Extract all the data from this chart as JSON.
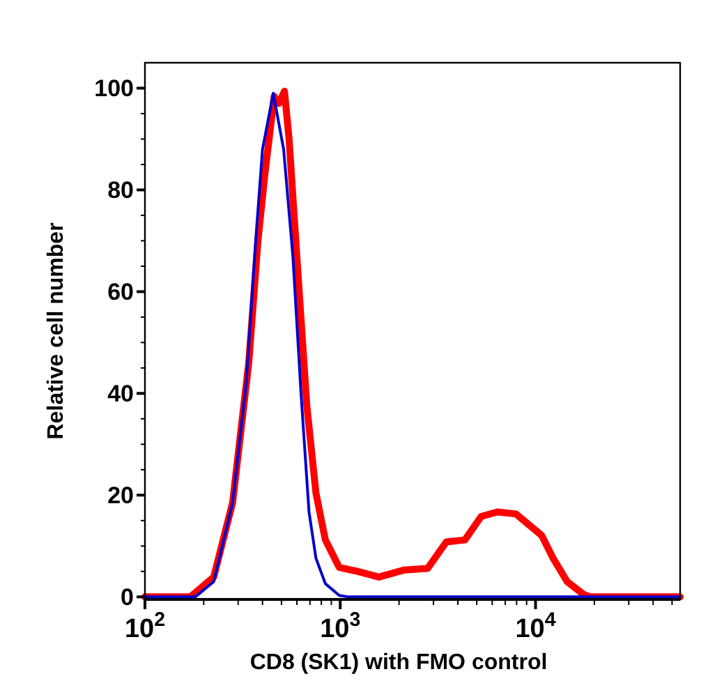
{
  "chart_data": {
    "type": "line",
    "log": "x",
    "xlabel": "CD8 (SK1) with FMO control",
    "ylabel": "Relative cell number",
    "xlim": [
      100,
      55000
    ],
    "ylim": [
      -0.5,
      105
    ],
    "xticks": [
      {
        "value": 100,
        "label": "10$^{2}$"
      },
      {
        "value": 200,
        "label": null
      },
      {
        "value": 300,
        "label": null
      },
      {
        "value": 400,
        "label": null
      },
      {
        "value": 500,
        "label": null
      },
      {
        "value": 600,
        "label": null
      },
      {
        "value": 700,
        "label": null
      },
      {
        "value": 800,
        "label": null
      },
      {
        "value": 900,
        "label": null
      },
      {
        "value": 1000,
        "label": "10$^{3}$"
      },
      {
        "value": 2000,
        "label": null
      },
      {
        "value": 3000,
        "label": null
      },
      {
        "value": 4000,
        "label": null
      },
      {
        "value": 5000,
        "label": null
      },
      {
        "value": 6000,
        "label": null
      },
      {
        "value": 7000,
        "label": null
      },
      {
        "value": 8000,
        "label": null
      },
      {
        "value": 9000,
        "label": null
      },
      {
        "value": 10000,
        "label": "10$^{4}$"
      },
      {
        "value": 20000,
        "label": null
      },
      {
        "value": 30000,
        "label": null
      },
      {
        "value": 40000,
        "label": null
      },
      {
        "value": 50000,
        "label": null
      }
    ],
    "yticks": [
      0,
      {
        "value": 5,
        "label": null
      },
      {
        "value": 10,
        "label": null
      },
      {
        "value": 15,
        "label": null
      },
      20,
      {
        "value": 25,
        "label": null
      },
      {
        "value": 30,
        "label": null
      },
      {
        "value": 35,
        "label": null
      },
      40,
      {
        "value": 45,
        "label": null
      },
      {
        "value": 50,
        "label": null
      },
      {
        "value": 55,
        "label": null
      },
      60,
      {
        "value": 65,
        "label": null
      },
      {
        "value": 70,
        "label": null
      },
      {
        "value": 75,
        "label": null
      },
      80,
      {
        "value": 85,
        "label": null
      },
      {
        "value": 90,
        "label": null
      },
      {
        "value": 95,
        "label": null
      },
      100
    ],
    "series": [
      {
        "color": "#ff0000",
        "x": [
          100,
          171,
          225,
          281,
          340,
          379,
          411,
          459,
          485,
          518,
          547,
          604,
          674,
          751,
          839,
          988,
          1231,
          1578,
          2133,
          2805,
          3491,
          4350,
          5265,
          6380,
          7943,
          9360,
          10740,
          12300,
          14520,
          17600,
          19100,
          55000
        ],
        "values": [
          0,
          0,
          3.9,
          18.5,
          46,
          70,
          83,
          98.4,
          97,
          99.4,
          90,
          65,
          37.7,
          20.4,
          11.2,
          5.8,
          5,
          3.9,
          5.3,
          5.6,
          10.8,
          11.2,
          15.8,
          16.7,
          16.3,
          14,
          12.1,
          7.6,
          3,
          0.5,
          0,
          0
        ]
      },
      {
        "color": "#0000cc",
        "x": [
          100,
          181,
          225,
          281,
          330,
          369,
          400,
          454,
          513,
          572,
          631,
          692,
          751,
          839,
          988,
          1100,
          55000
        ],
        "values": [
          0,
          0,
          3,
          18.5,
          42,
          70,
          88,
          99,
          88,
          67,
          39.5,
          16.7,
          7.6,
          2.6,
          0.3,
          0,
          0
        ]
      }
    ]
  }
}
